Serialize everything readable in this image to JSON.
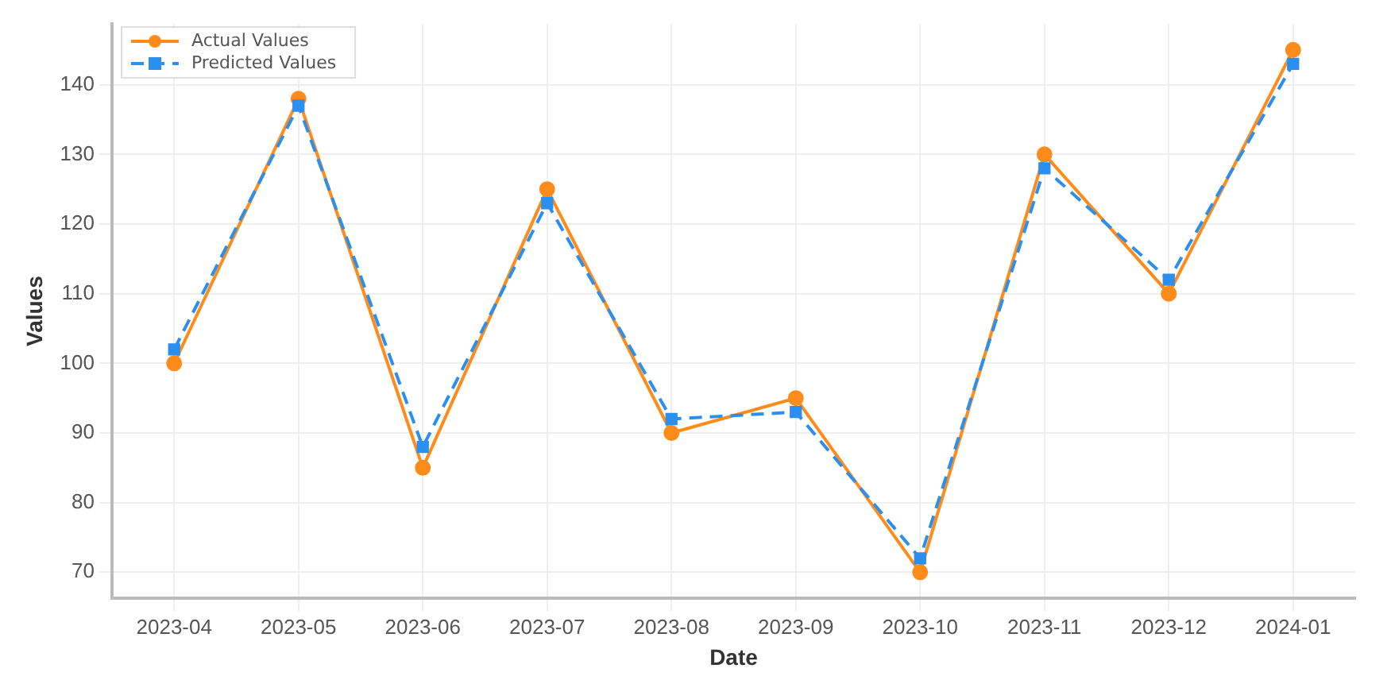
{
  "chart_data": {
    "type": "line",
    "xlabel": "Date",
    "ylabel": "Values",
    "categories": [
      "2023-04",
      "2023-05",
      "2023-06",
      "2023-07",
      "2023-08",
      "2023-09",
      "2023-10",
      "2023-11",
      "2023-12",
      "2024-01"
    ],
    "series": [
      {
        "name": "Actual Values",
        "color": "#ff8c1a",
        "marker": "circle",
        "line_style": "solid",
        "values": [
          100,
          138,
          85,
          125,
          90,
          95,
          70,
          130,
          110,
          145
        ]
      },
      {
        "name": "Predicted Values",
        "color": "#2b8ff0",
        "marker": "square",
        "line_style": "dashed",
        "values": [
          102,
          137,
          88,
          123,
          92,
          93,
          72,
          128,
          112,
          143
        ]
      }
    ],
    "ylim": [
      66.25,
      148.75
    ],
    "yticks": [
      70,
      80,
      90,
      100,
      110,
      120,
      130,
      140
    ],
    "grid": true,
    "legend": "top left"
  }
}
